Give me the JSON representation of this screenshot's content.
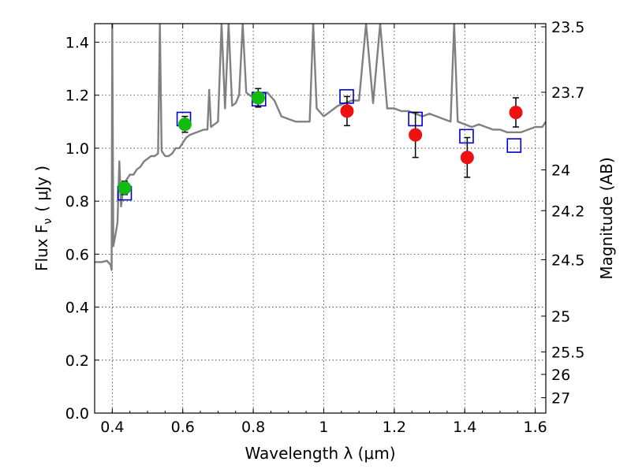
{
  "chart_data": {
    "type": "scatter",
    "xlabel": "Wavelength  λ (μm)",
    "ylabel": "Flux  F",
    "ylabel_sub": "ν",
    "ylabel_unit": "( μJy )",
    "y2label": "Magnitude (AB)",
    "xlim": [
      0.35,
      1.63
    ],
    "ylim": [
      0.0,
      1.47
    ],
    "grid": true,
    "x_ticks": [
      0.4,
      0.6,
      0.8,
      1.0,
      1.2,
      1.4,
      1.6
    ],
    "x_tick_labels": [
      "0.4",
      "0.6",
      "0.8",
      "1",
      "1.2",
      "1.4",
      "1.6"
    ],
    "y_ticks": [
      0.0,
      0.2,
      0.4,
      0.6,
      0.8,
      1.0,
      1.2,
      1.4
    ],
    "y_tick_labels": [
      "0.0",
      "0.2",
      "0.4",
      "0.6",
      "0.8",
      "1.0",
      "1.2",
      "1.4"
    ],
    "y2_tick_labels": [
      "23.5",
      "23.7",
      "24",
      "24.2",
      "24.5",
      "25",
      "25.5",
      "26",
      "27"
    ],
    "y2_tick_flux": [
      1.458,
      1.211,
      0.918,
      0.764,
      0.579,
      0.366,
      0.231,
      0.146,
      0.058
    ],
    "series": [
      {
        "marker": "circle",
        "color": "#11bb11",
        "x": [
          0.435,
          0.606,
          0.814
        ],
        "y": [
          0.85,
          1.09,
          1.19
        ],
        "yerr": [
          0.025,
          0.03,
          0.035
        ]
      },
      {
        "marker": "circle",
        "color": "#ee1111",
        "x": [
          1.066,
          1.26,
          1.407,
          1.545
        ],
        "y": [
          1.14,
          1.05,
          0.965,
          1.135
        ],
        "yerr": [
          0.055,
          0.085,
          0.075,
          0.055
        ]
      },
      {
        "marker": "open-square",
        "color": "#0000cc",
        "x": [
          0.435,
          0.603,
          0.816,
          1.065,
          1.26,
          1.405,
          1.54
        ],
        "y": [
          0.83,
          1.11,
          1.185,
          1.195,
          1.11,
          1.045,
          1.01
        ]
      },
      {
        "marker": "line",
        "color": "#808080",
        "x": [
          0.35,
          0.37,
          0.385,
          0.395,
          0.398,
          0.4,
          0.403,
          0.41,
          0.415,
          0.42,
          0.425,
          0.43,
          0.44,
          0.45,
          0.46,
          0.47,
          0.48,
          0.49,
          0.5,
          0.51,
          0.52,
          0.53,
          0.535,
          0.54,
          0.545,
          0.55,
          0.56,
          0.57,
          0.58,
          0.59,
          0.6,
          0.61,
          0.62,
          0.64,
          0.66,
          0.67,
          0.675,
          0.68,
          0.7,
          0.71,
          0.72,
          0.73,
          0.74,
          0.75,
          0.76,
          0.77,
          0.78,
          0.79,
          0.8,
          0.82,
          0.84,
          0.86,
          0.88,
          0.9,
          0.92,
          0.94,
          0.96,
          0.97,
          0.98,
          1.0,
          1.02,
          1.04,
          1.06,
          1.08,
          1.1,
          1.12,
          1.14,
          1.16,
          1.18,
          1.2,
          1.22,
          1.24,
          1.26,
          1.28,
          1.3,
          1.32,
          1.34,
          1.36,
          1.37,
          1.38,
          1.4,
          1.42,
          1.44,
          1.46,
          1.48,
          1.5,
          1.52,
          1.54,
          1.56,
          1.58,
          1.6,
          1.62,
          1.63
        ],
        "y": [
          0.57,
          0.57,
          0.575,
          0.56,
          0.54,
          1.47,
          0.63,
          0.68,
          0.72,
          0.95,
          0.78,
          0.84,
          0.88,
          0.9,
          0.9,
          0.92,
          0.93,
          0.95,
          0.96,
          0.97,
          0.97,
          0.98,
          1.47,
          0.99,
          0.98,
          0.97,
          0.97,
          0.98,
          1.0,
          1.0,
          1.02,
          1.04,
          1.05,
          1.06,
          1.07,
          1.07,
          1.22,
          1.08,
          1.1,
          1.47,
          1.15,
          1.47,
          1.16,
          1.17,
          1.2,
          1.47,
          1.21,
          1.2,
          1.19,
          1.2,
          1.21,
          1.18,
          1.12,
          1.11,
          1.1,
          1.1,
          1.1,
          1.47,
          1.15,
          1.12,
          1.14,
          1.16,
          1.17,
          1.18,
          1.18,
          1.47,
          1.17,
          1.47,
          1.15,
          1.15,
          1.14,
          1.14,
          1.13,
          1.12,
          1.13,
          1.12,
          1.11,
          1.1,
          1.47,
          1.1,
          1.09,
          1.08,
          1.09,
          1.08,
          1.07,
          1.07,
          1.06,
          1.06,
          1.06,
          1.07,
          1.08,
          1.08,
          1.1
        ]
      }
    ]
  }
}
